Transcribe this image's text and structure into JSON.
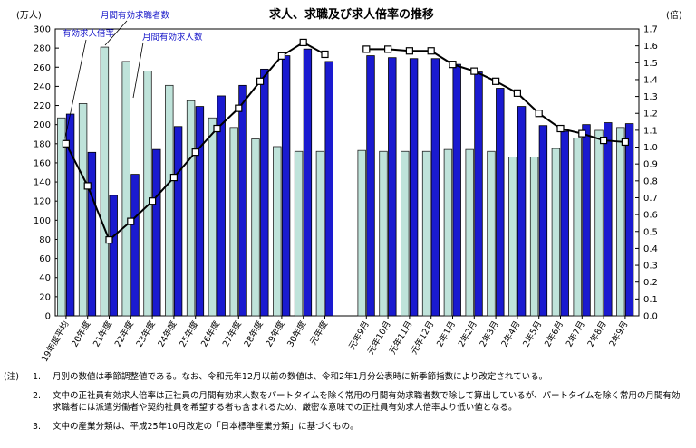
{
  "chart_data": {
    "type": "bar+line",
    "title": "求人、求職及び求人倍率の推移",
    "left_axis": {
      "unit": "(万人)",
      "ylim": [
        0,
        300
      ],
      "step": 20
    },
    "right_axis": {
      "unit": "(倍)",
      "ylim": [
        0.0,
        1.7
      ],
      "step": 0.1
    },
    "legend_labels": {
      "seekers": "月間有効求職者数",
      "openings": "月間有効求人数",
      "ratio": "有効求人倍率"
    },
    "categories": [
      "19年度平均",
      "20年度",
      "21年度",
      "22年度",
      "23年度",
      "24年度",
      "25年度",
      "26年度",
      "27年度",
      "28年度",
      "29年度",
      "30年度",
      "元年度",
      "元年9月",
      "元年10月",
      "元年11月",
      "元年12月",
      "2年1月",
      "2年2月",
      "2年3月",
      "2年4月",
      "2年5月",
      "2年6月",
      "2年7月",
      "2年8月",
      "2年9月"
    ],
    "series": [
      {
        "name": "月間有効求職者数",
        "axis": "left",
        "values": [
          207,
          222,
          281,
          266,
          256,
          241,
          225,
          207,
          197,
          185,
          177,
          172,
          172,
          173,
          172,
          172,
          172,
          174,
          174,
          172,
          166,
          166,
          175,
          186,
          194,
          197
        ]
      },
      {
        "name": "月間有効求人数",
        "axis": "left",
        "values": [
          211,
          171,
          126,
          148,
          174,
          198,
          219,
          230,
          241,
          258,
          272,
          279,
          266,
          272,
          270,
          269,
          269,
          263,
          255,
          238,
          219,
          199,
          193,
          200,
          202,
          201
        ]
      },
      {
        "name": "有効求人倍率",
        "axis": "right",
        "values": [
          1.02,
          0.77,
          0.45,
          0.56,
          0.68,
          0.82,
          0.97,
          1.11,
          1.23,
          1.39,
          1.54,
          1.62,
          1.55,
          1.58,
          1.58,
          1.57,
          1.57,
          1.49,
          1.45,
          1.39,
          1.32,
          1.2,
          1.11,
          1.08,
          1.04,
          1.03
        ]
      }
    ],
    "tick_labels_left": [
      "0",
      "20",
      "40",
      "60",
      "80",
      "100",
      "120",
      "140",
      "160",
      "180",
      "200",
      "220",
      "240",
      "260",
      "280",
      "300"
    ],
    "tick_labels_right": [
      "0.0",
      "0.1",
      "0.2",
      "0.3",
      "0.4",
      "0.5",
      "0.6",
      "0.7",
      "0.8",
      "0.9",
      "1.0",
      "1.1",
      "1.2",
      "1.3",
      "1.4",
      "1.5",
      "1.6",
      "1.7"
    ],
    "grid": false
  },
  "notes": {
    "head": "(注)",
    "items": [
      {
        "num": "1.",
        "text": "月別の数値は季節調整値である。なお、令和元年12月以前の数値は、令和2年1月分公表時に新季節指数により改定されている。"
      },
      {
        "num": "2.",
        "text": "文中の正社員有効求人倍率は正社員の月間有効求人数をパートタイムを除く常用の月間有効求職者数で除して算出しているが、パートタイムを除く常用の月間有効求職者には派遣労働者や契約社員を希望する者も含まれるため、厳密な意味での正社員有効求人倍率より低い値となる。"
      },
      {
        "num": "3.",
        "text": "文中の産業分類は、平成25年10月改定の「日本標準産業分類」に基づくもの。"
      }
    ]
  },
  "colors": {
    "seekers": "#bfe3da",
    "openings": "#1a1ad0",
    "label_blue": "#1414c8",
    "line": "#000000"
  }
}
